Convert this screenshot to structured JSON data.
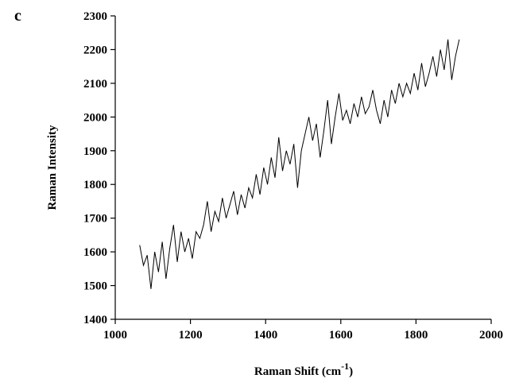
{
  "chart_data": {
    "type": "line",
    "panel_label": "c",
    "ylabel": "Raman Intensity",
    "xlabel": {
      "text": "Raman Shift (cm",
      "superscript": "-1",
      "suffix": ")"
    },
    "xlim": [
      1000,
      2000
    ],
    "xticks": [
      1000,
      1200,
      1400,
      1600,
      1800,
      2000
    ],
    "ylim": [
      1400,
      2300
    ],
    "yticks": [
      1400,
      1500,
      1600,
      1700,
      1800,
      1900,
      2000,
      2100,
      2200,
      2300
    ],
    "x": [
      1065,
      1075,
      1085,
      1095,
      1105,
      1115,
      1125,
      1135,
      1145,
      1155,
      1165,
      1175,
      1185,
      1195,
      1205,
      1215,
      1225,
      1235,
      1245,
      1255,
      1265,
      1275,
      1285,
      1295,
      1305,
      1315,
      1325,
      1335,
      1345,
      1355,
      1365,
      1375,
      1385,
      1395,
      1405,
      1415,
      1425,
      1435,
      1445,
      1455,
      1465,
      1475,
      1485,
      1495,
      1505,
      1515,
      1525,
      1535,
      1545,
      1555,
      1565,
      1575,
      1585,
      1595,
      1605,
      1615,
      1625,
      1635,
      1645,
      1655,
      1665,
      1675,
      1685,
      1695,
      1705,
      1715,
      1725,
      1735,
      1745,
      1755,
      1765,
      1775,
      1785,
      1795,
      1805,
      1815,
      1825,
      1835,
      1845,
      1855,
      1865,
      1875,
      1885,
      1895,
      1905,
      1915
    ],
    "series": [
      {
        "color": "#000000",
        "values": [
          1620,
          1560,
          1590,
          1490,
          1600,
          1540,
          1630,
          1520,
          1610,
          1680,
          1570,
          1660,
          1600,
          1640,
          1580,
          1660,
          1640,
          1680,
          1750,
          1660,
          1720,
          1690,
          1760,
          1700,
          1740,
          1780,
          1710,
          1770,
          1730,
          1790,
          1760,
          1830,
          1770,
          1850,
          1800,
          1880,
          1820,
          1940,
          1840,
          1900,
          1860,
          1920,
          1790,
          1900,
          1950,
          2000,
          1930,
          1980,
          1880,
          1960,
          2050,
          1920,
          2000,
          2070,
          1990,
          2020,
          1980,
          2040,
          2000,
          2060,
          2010,
          2030,
          2080,
          2020,
          1980,
          2050,
          2000,
          2080,
          2040,
          2100,
          2060,
          2100,
          2070,
          2130,
          2080,
          2160,
          2090,
          2130,
          2180,
          2120,
          2200,
          2140,
          2230,
          2110,
          2180,
          2230
        ]
      }
    ]
  }
}
